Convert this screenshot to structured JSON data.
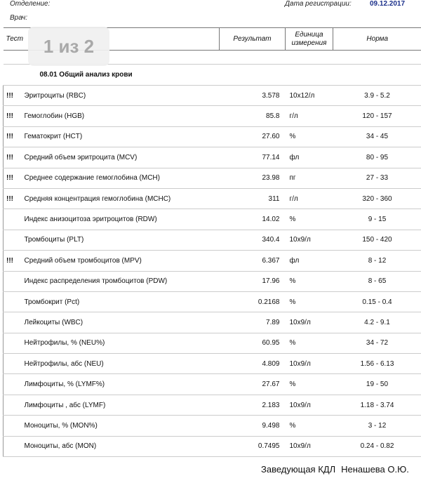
{
  "header": {
    "department_label": "Отделение:",
    "doctor_label": "Врач:",
    "reg_date_label": "Дата регистрации:",
    "reg_date_value": "09.12.2017"
  },
  "page_badge": "1 из 2",
  "columns": {
    "test": "Тест",
    "result": "Результат",
    "unit_line1": "Единица",
    "unit_line2": "измерения",
    "norm": "Норма"
  },
  "section_title": "08.01 Общий анализ крови",
  "rows": [
    {
      "flag": "!!!",
      "name": "Эритроциты (RBC)",
      "result": "3.578",
      "unit": "10x12/л",
      "norm": "3.9 - 5.2"
    },
    {
      "flag": "!!!",
      "name": "Гемоглобин (HGB)",
      "result": "85.8",
      "unit": "г/л",
      "norm": "120 - 157"
    },
    {
      "flag": "!!!",
      "name": "Гематокрит (HCT)",
      "result": "27.60",
      "unit": "%",
      "norm": "34 - 45"
    },
    {
      "flag": "!!!",
      "name": "Средний объем эритроцита (MCV)",
      "result": "77.14",
      "unit": "фл",
      "norm": "80 - 95"
    },
    {
      "flag": "!!!",
      "name": "Среднее содержание гемоглобина (MCH)",
      "result": "23.98",
      "unit": "пг",
      "norm": "27 - 33"
    },
    {
      "flag": "!!!",
      "name": "Средняя концентрация гемоглобина (MCHC)",
      "result": "311",
      "unit": "г/л",
      "norm": "320 - 360"
    },
    {
      "flag": "",
      "name": "Индекс анизоцитоза эритроцитов (RDW)",
      "result": "14.02",
      "unit": "%",
      "norm": "9 - 15"
    },
    {
      "flag": "",
      "name": "Тромбоциты (PLT)",
      "result": "340.4",
      "unit": "10x9/л",
      "norm": "150 - 420"
    },
    {
      "flag": "!!!",
      "name": "Средний объем тромбоцитов (MPV)",
      "result": "6.367",
      "unit": "фл",
      "norm": "8 - 12"
    },
    {
      "flag": "",
      "name": "Индекс распределения тромбоцитов (PDW)",
      "result": "17.96",
      "unit": "%",
      "norm": "8 - 65"
    },
    {
      "flag": "",
      "name": "Тромбокрит (Pct)",
      "result": "0.2168",
      "unit": "%",
      "norm": "0.15 - 0.4"
    },
    {
      "flag": "",
      "name": "Лейкоциты (WBC)",
      "result": "7.89",
      "unit": "10x9/л",
      "norm": "4.2 - 9.1"
    },
    {
      "flag": "",
      "name": "Нейтрофилы, % (NEU%)",
      "result": "60.95",
      "unit": "%",
      "norm": "34 - 72"
    },
    {
      "flag": "",
      "name": "Нейтрофилы, абс (NEU)",
      "result": "4.809",
      "unit": "10x9/л",
      "norm": "1.56 - 6.13"
    },
    {
      "flag": "",
      "name": "Лимфоциты, % (LYMF%)",
      "result": "27.67",
      "unit": "%",
      "norm": "19 - 50"
    },
    {
      "flag": "",
      "name": "Лимфоциты , абс (LYMF)",
      "result": "2.183",
      "unit": "10x9/л",
      "norm": "1.18 - 3.74"
    },
    {
      "flag": "",
      "name": "Моноциты, % (MON%)",
      "result": "9.498",
      "unit": "%",
      "norm": "3 - 12"
    },
    {
      "flag": "",
      "name": "Моноциты, абс (MON)",
      "result": "0.7495",
      "unit": "10x9/л",
      "norm": "0.24 - 0.82"
    }
  ],
  "footer": {
    "signature_title": "Заведующая КДЛ",
    "signature_name": "Ненашева О.Ю."
  }
}
